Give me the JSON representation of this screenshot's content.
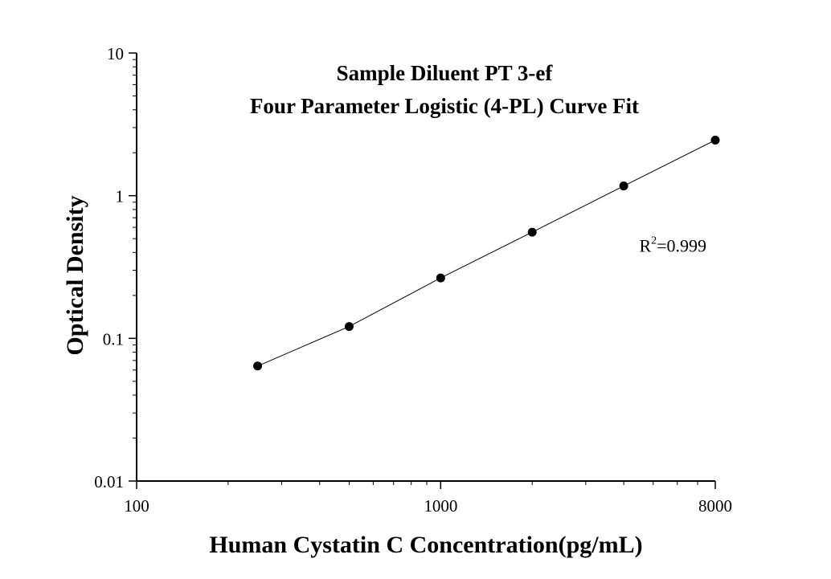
{
  "chart_data": {
    "type": "scatter",
    "title": "Sample Diluent PT 3-ef",
    "subtitle": "Four Parameter Logistic (4-PL) Curve Fit",
    "xlabel": "Human Cystatin C Concentration(pg/mL)",
    "ylabel": "Optical Density",
    "x_scale": "log",
    "y_scale": "log",
    "xlim": [
      100,
      8000
    ],
    "ylim": [
      0.01,
      10
    ],
    "x_ticks": [
      {
        "value": 100,
        "label": "100"
      },
      {
        "value": 1000,
        "label": "1000"
      },
      {
        "value": 8000,
        "label": "8000"
      }
    ],
    "y_ticks": [
      {
        "value": 0.01,
        "label": "0.01"
      },
      {
        "value": 0.1,
        "label": "0.1"
      },
      {
        "value": 1,
        "label": "1"
      },
      {
        "value": 10,
        "label": "10"
      }
    ],
    "grid": false,
    "legend": "none",
    "series": [
      {
        "x": [
          250,
          500,
          1000,
          2000,
          4000,
          8000
        ],
        "y": [
          0.064,
          0.121,
          0.265,
          0.555,
          1.17,
          2.45
        ],
        "marker": "filled-circle",
        "fit_line": true,
        "color": "#000000"
      }
    ],
    "annotation": {
      "base": "R",
      "superscript": "2",
      "rest": "=0.999",
      "x": 4500,
      "y": 0.45
    }
  }
}
